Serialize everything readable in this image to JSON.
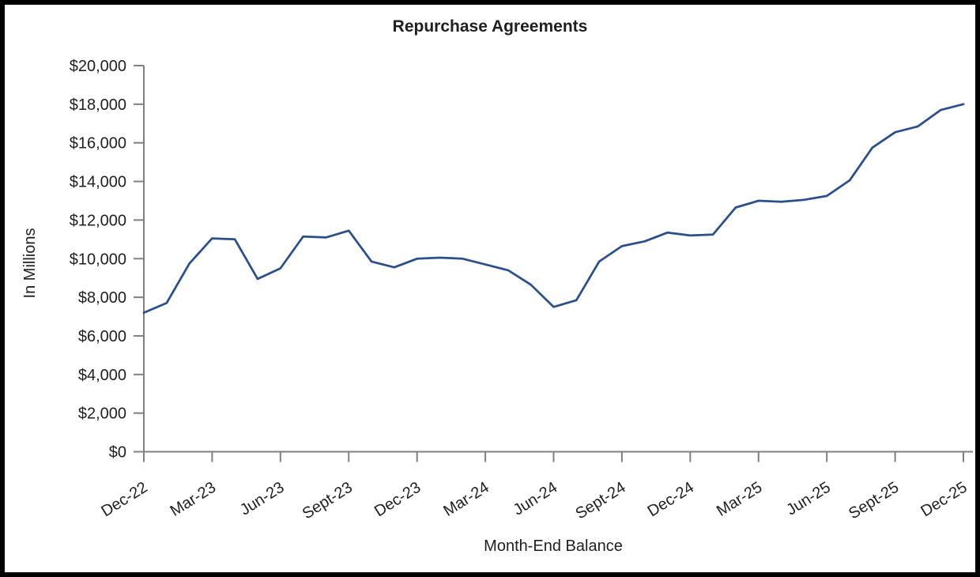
{
  "chart_data": {
    "type": "line",
    "title": "Repurchase Agreements",
    "ylabel": "In Millions",
    "xlabel": "Month-End Balance",
    "x": [
      "Dec-22",
      "Jan-23",
      "Feb-23",
      "Mar-23",
      "Apr-23",
      "May-23",
      "Jun-23",
      "Jul-23",
      "Aug-23",
      "Sept-23",
      "Oct-23",
      "Nov-23",
      "Dec-23",
      "Jan-24",
      "Feb-24",
      "Mar-24",
      "Apr-24",
      "May-24",
      "Jun-24",
      "Jul-24",
      "Aug-24",
      "Sept-24",
      "Oct-24",
      "Nov-24",
      "Dec-24",
      "Jan-25",
      "Feb-25",
      "Mar-25",
      "Apr-25",
      "May-25",
      "Jun-25",
      "Jul-25",
      "Aug-25",
      "Sept-25",
      "Oct-25",
      "Nov-25",
      "Dec-25"
    ],
    "values": [
      7200,
      7700,
      9750,
      11050,
      11000,
      8950,
      9500,
      11150,
      11100,
      11450,
      9850,
      9550,
      10000,
      10050,
      10000,
      9700,
      9400,
      8650,
      7500,
      7850,
      9850,
      10650,
      10900,
      11350,
      11200,
      11250,
      12650,
      13000,
      12950,
      13050,
      13250,
      14050,
      15750,
      16550,
      16850,
      17700,
      18000
    ],
    "x_tick_labels": [
      "Dec-22",
      "Mar-23",
      "Jun-23",
      "Sept-23",
      "Dec-23",
      "Mar-24",
      "Jun-24",
      "Sept-24",
      "Dec-24",
      "Mar-25",
      "Jun-25",
      "Sept-25",
      "Dec-25"
    ],
    "x_tick_every": 3,
    "y_ticks": [
      0,
      2000,
      4000,
      6000,
      8000,
      10000,
      12000,
      14000,
      16000,
      18000,
      20000
    ],
    "y_tick_labels": [
      "$0",
      "$2,000",
      "$4,000",
      "$6,000",
      "$8,000",
      "$10,000",
      "$12,000",
      "$14,000",
      "$16,000",
      "$18,000",
      "$20,000"
    ],
    "ylim": [
      0,
      20000
    ],
    "grid": false,
    "legend": "none",
    "colors": {
      "line": "#2A4F8F",
      "title": "#2E5596",
      "axis": "#808080",
      "tick_text": "#1f1f1f",
      "frame": "#000000"
    }
  }
}
